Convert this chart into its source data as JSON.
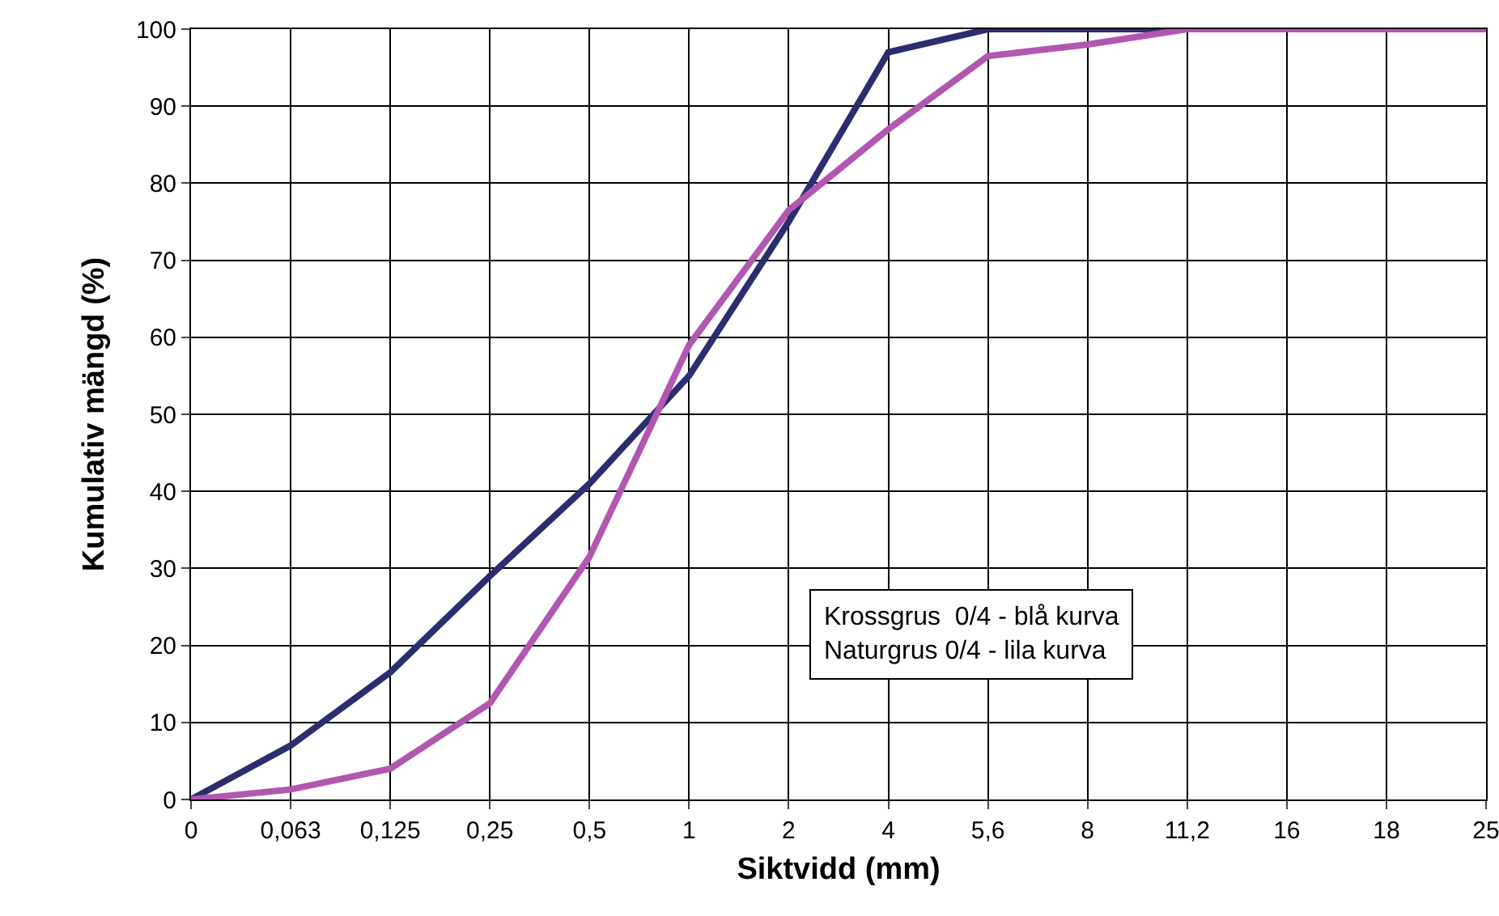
{
  "chart_data": {
    "type": "line",
    "xlabel": "Siktvidd (mm)",
    "ylabel": "Kumulativ mängd (%)",
    "categories": [
      "0",
      "0,063",
      "0,125",
      "0,25",
      "0,5",
      "1",
      "2",
      "4",
      "5,6",
      "8",
      "11,2",
      "16",
      "18",
      "25"
    ],
    "series": [
      {
        "color": "#2b2d6e",
        "values": [
          0,
          7,
          16.5,
          29,
          41,
          55,
          75,
          97,
          100,
          100,
          100,
          null,
          null,
          null
        ]
      },
      {
        "color": "#b157b0",
        "values": [
          0,
          1.3,
          4,
          12.5,
          31.5,
          59,
          76.5,
          87,
          96.5,
          98,
          100,
          100,
          100,
          100
        ]
      }
    ],
    "ylim": [
      0,
      100
    ],
    "yticks": [
      0,
      10,
      20,
      30,
      40,
      50,
      60,
      70,
      80,
      90,
      100
    ],
    "grid": true,
    "marker": "none",
    "line_style": "solid",
    "annotations": [
      "Krossgrus  0/4 - blå kurva",
      "Naturgrus 0/4 - lila kurva"
    ]
  }
}
